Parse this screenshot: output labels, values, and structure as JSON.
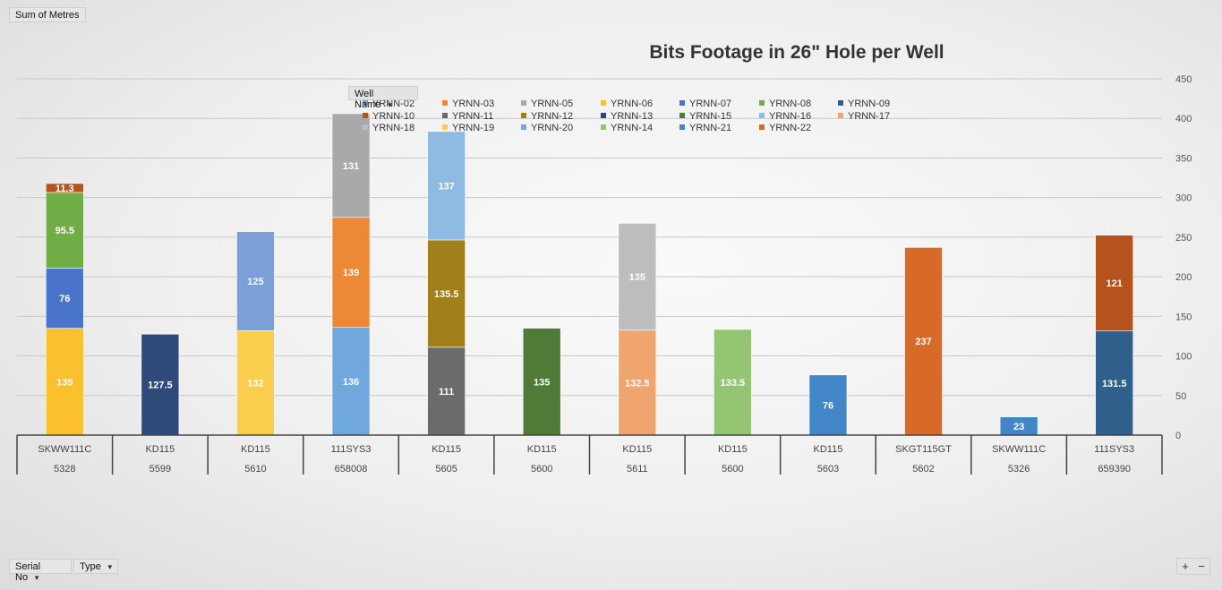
{
  "pivot": {
    "sum_field": "Sum of Metres",
    "legend_field": "Well Name",
    "axis_fields": [
      "Serial No",
      "Type"
    ],
    "zoom": [
      "+",
      "−"
    ]
  },
  "chart_data": {
    "type": "bar",
    "stacked": true,
    "title": "Bits Footage in 26\" Hole per Well",
    "ylim": [
      0,
      450
    ],
    "y_ticks": [
      0,
      50,
      100,
      150,
      200,
      250,
      300,
      350,
      400,
      450
    ],
    "grid": true,
    "legend_position": "top",
    "categories": [
      {
        "type": "SKWW111C",
        "serial": "5328"
      },
      {
        "type": "KD115",
        "serial": "5599"
      },
      {
        "type": "KD115",
        "serial": "5610"
      },
      {
        "type": "111SYS3",
        "serial": "658008"
      },
      {
        "type": "KD115",
        "serial": "5605"
      },
      {
        "type": "KD115",
        "serial": "5600"
      },
      {
        "type": "KD115",
        "serial": "5611"
      },
      {
        "type": "KD115",
        "serial": "5600"
      },
      {
        "type": "KD115",
        "serial": "5603"
      },
      {
        "type": "SKGT115GT",
        "serial": "5602"
      },
      {
        "type": "SKWW111C",
        "serial": "5326"
      },
      {
        "type": "111SYS3",
        "serial": "659390"
      }
    ],
    "series": [
      {
        "name": "YRNN-02",
        "color": "#6fa8dc",
        "values": [
          null,
          null,
          null,
          136,
          null,
          null,
          null,
          null,
          null,
          null,
          null,
          null
        ]
      },
      {
        "name": "YRNN-03",
        "color": "#ed8936",
        "values": [
          null,
          null,
          null,
          139,
          null,
          null,
          null,
          null,
          null,
          null,
          null,
          null
        ]
      },
      {
        "name": "YRNN-05",
        "color": "#a9a9a9",
        "values": [
          null,
          null,
          null,
          131,
          null,
          null,
          null,
          null,
          null,
          null,
          null,
          null
        ]
      },
      {
        "name": "YRNN-06",
        "color": "#fbc02d",
        "values": [
          135,
          null,
          null,
          null,
          null,
          null,
          null,
          null,
          null,
          null,
          null,
          null
        ]
      },
      {
        "name": "YRNN-07",
        "color": "#4a74c9",
        "values": [
          76,
          null,
          null,
          null,
          null,
          null,
          null,
          null,
          null,
          null,
          null,
          null
        ]
      },
      {
        "name": "YRNN-08",
        "color": "#70ad47",
        "values": [
          95.5,
          null,
          null,
          null,
          null,
          null,
          null,
          null,
          null,
          null,
          null,
          null
        ]
      },
      {
        "name": "YRNN-09",
        "color": "#2f5f8a",
        "values": [
          null,
          null,
          null,
          null,
          null,
          null,
          null,
          null,
          null,
          null,
          null,
          131.5
        ]
      },
      {
        "name": "YRNN-10",
        "color": "#b5531e",
        "values": [
          11.3,
          null,
          null,
          null,
          null,
          null,
          null,
          null,
          null,
          null,
          null,
          121
        ]
      },
      {
        "name": "YRNN-11",
        "color": "#6b6b6b",
        "values": [
          null,
          null,
          null,
          null,
          111,
          null,
          null,
          null,
          null,
          null,
          null,
          null
        ]
      },
      {
        "name": "YRNN-12",
        "color": "#a17f1a",
        "values": [
          null,
          null,
          null,
          null,
          135.5,
          null,
          null,
          null,
          null,
          null,
          null,
          null
        ]
      },
      {
        "name": "YRNN-13",
        "color": "#2e4a7a",
        "values": [
          null,
          127.5,
          null,
          null,
          null,
          null,
          null,
          null,
          null,
          null,
          null,
          null
        ]
      },
      {
        "name": "YRNN-15",
        "color": "#4f7a38",
        "values": [
          null,
          null,
          null,
          null,
          null,
          135,
          null,
          null,
          null,
          null,
          null,
          null
        ]
      },
      {
        "name": "YRNN-16",
        "color": "#8fbbe3",
        "values": [
          null,
          null,
          null,
          null,
          137,
          null,
          null,
          null,
          null,
          null,
          null,
          null
        ]
      },
      {
        "name": "YRNN-17",
        "color": "#f0a46e",
        "values": [
          null,
          null,
          null,
          null,
          null,
          null,
          132.5,
          null,
          null,
          null,
          null,
          null
        ]
      },
      {
        "name": "YRNN-18",
        "color": "#bdbdbd",
        "values": [
          null,
          null,
          null,
          null,
          null,
          null,
          135,
          null,
          null,
          null,
          null,
          null
        ]
      },
      {
        "name": "YRNN-19",
        "color": "#f9ce4f",
        "values": [
          null,
          null,
          132,
          null,
          null,
          null,
          null,
          null,
          null,
          null,
          null,
          null
        ]
      },
      {
        "name": "YRNN-20",
        "color": "#7b9fd6",
        "values": [
          null,
          null,
          125,
          null,
          null,
          null,
          null,
          null,
          null,
          null,
          null,
          null
        ]
      },
      {
        "name": "YRNN-14",
        "color": "#93c572",
        "values": [
          null,
          null,
          null,
          null,
          null,
          null,
          null,
          133.5,
          null,
          null,
          null,
          null
        ]
      },
      {
        "name": "YRNN-21",
        "color": "#4286c8",
        "values": [
          null,
          null,
          null,
          null,
          null,
          null,
          null,
          null,
          76,
          null,
          23,
          null
        ]
      },
      {
        "name": "YRNN-22",
        "color": "#d86a27",
        "values": [
          null,
          null,
          null,
          null,
          null,
          null,
          null,
          null,
          null,
          237,
          null,
          null
        ]
      }
    ],
    "stack_order": [
      [
        "YRNN-06",
        "YRNN-07",
        "YRNN-08",
        "YRNN-10"
      ],
      [
        "YRNN-13"
      ],
      [
        "YRNN-19",
        "YRNN-20"
      ],
      [
        "YRNN-02",
        "YRNN-03",
        "YRNN-05"
      ],
      [
        "YRNN-11",
        "YRNN-12",
        "YRNN-16"
      ],
      [
        "YRNN-15"
      ],
      [
        "YRNN-17",
        "YRNN-18"
      ],
      [
        "YRNN-14"
      ],
      [
        "YRNN-21"
      ],
      [
        "YRNN-22"
      ],
      [
        "YRNN-21"
      ],
      [
        "YRNN-09",
        "YRNN-10"
      ]
    ]
  }
}
